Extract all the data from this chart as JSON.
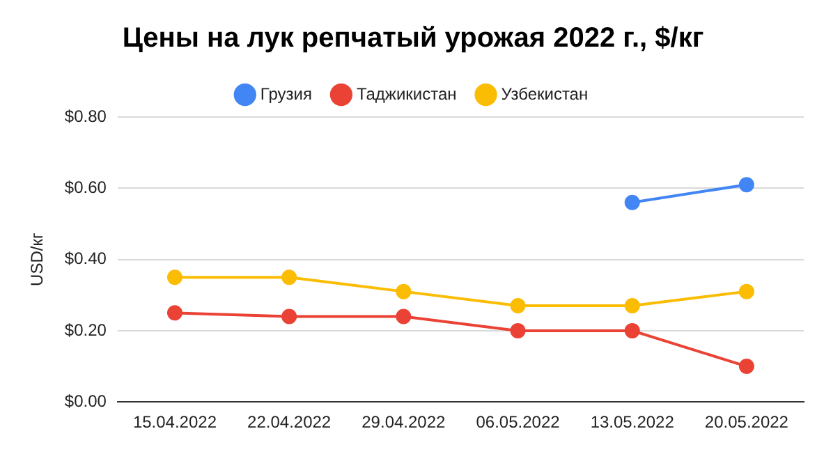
{
  "chart_data": {
    "type": "line",
    "title": "Цены на лук репчатый урожая 2022 г., $/кг",
    "ylabel": "USD/кг",
    "categories": [
      "15.04.2022",
      "22.04.2022",
      "29.04.2022",
      "06.05.2022",
      "13.05.2022",
      "20.05.2022"
    ],
    "series": [
      {
        "name": "Грузия",
        "color": "#4285f4",
        "values": [
          null,
          null,
          null,
          null,
          0.56,
          0.61
        ]
      },
      {
        "name": "Таджикистан",
        "color": "#ea4335",
        "values": [
          0.25,
          0.24,
          0.24,
          0.2,
          0.2,
          0.1
        ]
      },
      {
        "name": "Узбекистан",
        "color": "#fbbc04",
        "values": [
          0.35,
          0.35,
          0.31,
          0.27,
          0.27,
          0.31
        ]
      }
    ],
    "ylim": [
      0,
      0.8
    ],
    "yticks": [
      {
        "value": 0,
        "label": "$0.00"
      },
      {
        "value": 0.2,
        "label": "$0.20"
      },
      {
        "value": 0.4,
        "label": "$0.40"
      },
      {
        "value": 0.6,
        "label": "$0.60"
      },
      {
        "value": 0.8,
        "label": "$0.80"
      }
    ],
    "grid": "y",
    "legend": "top",
    "marker": "circle",
    "line_style": "solid"
  }
}
